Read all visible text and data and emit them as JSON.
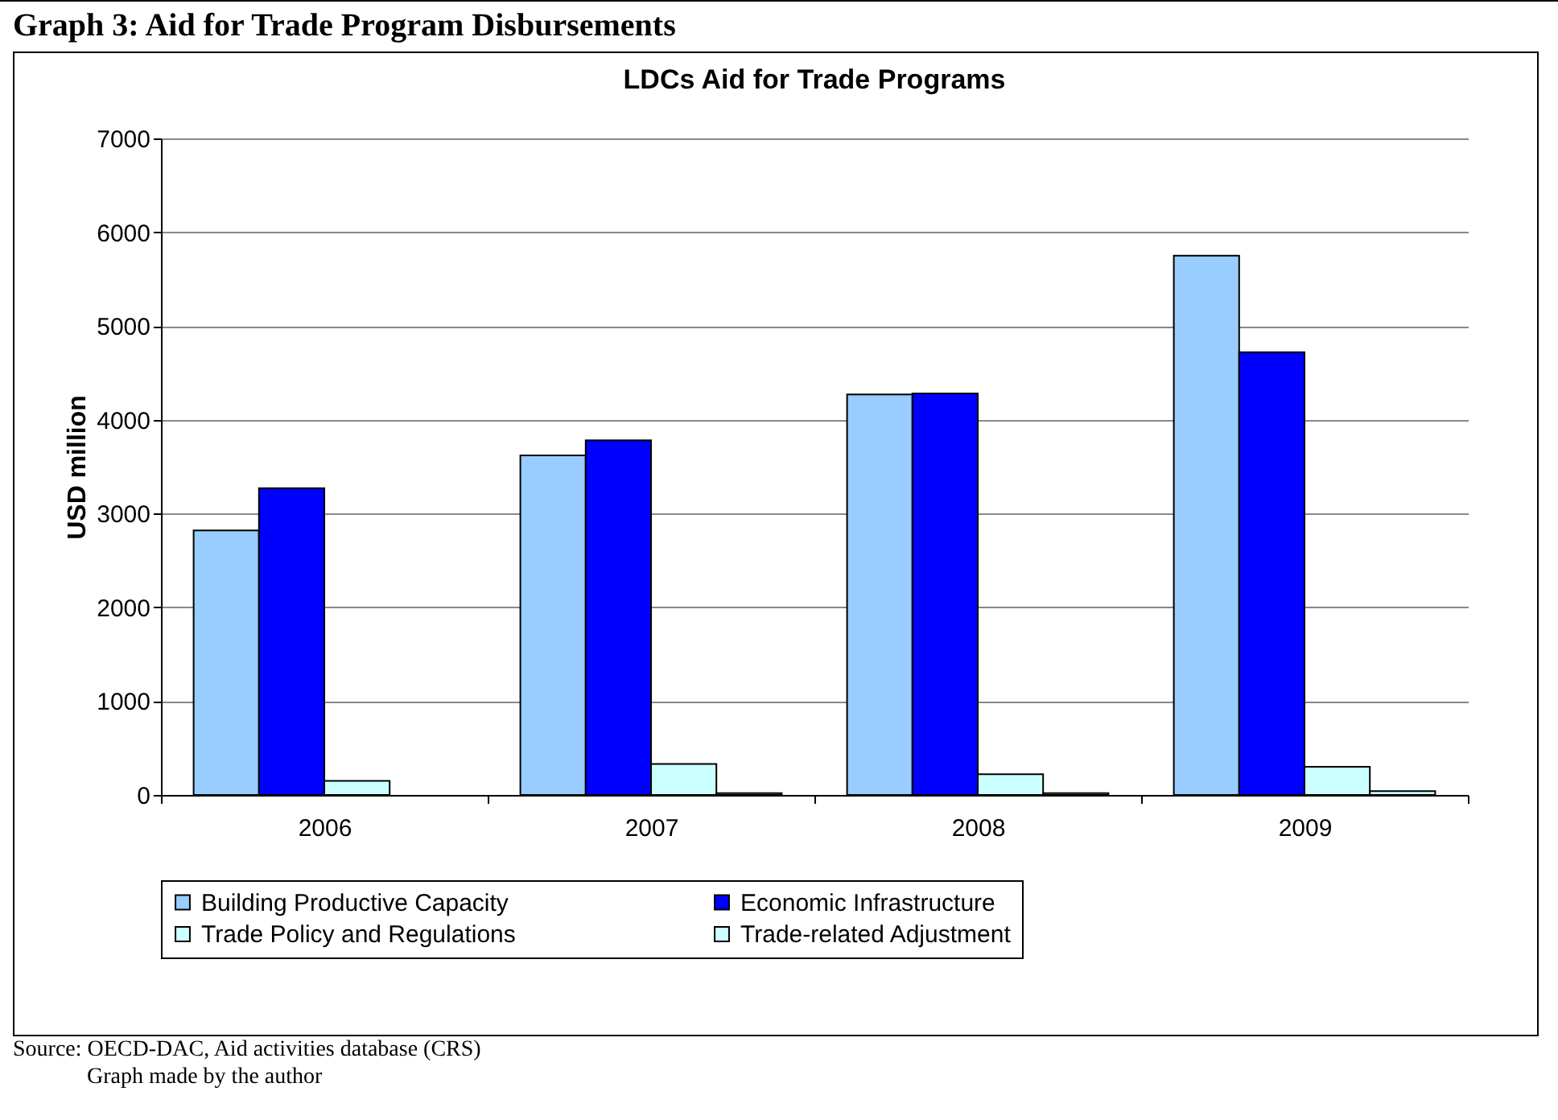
{
  "chart_data": {
    "type": "bar",
    "title": "Graph 3: Aid for Trade Program Disbursements",
    "subtitle": "LDCs Aid for Trade Programs",
    "ylabel": "USD million",
    "categories": [
      "2006",
      "2007",
      "2008",
      "2009"
    ],
    "series": [
      {
        "name": "Building Productive Capacity",
        "color": "#99ccff",
        "values": [
          2820,
          3620,
          4270,
          5750
        ]
      },
      {
        "name": "Economic Infrastructure",
        "color": "#0000ff",
        "values": [
          3270,
          3780,
          4280,
          4720
        ]
      },
      {
        "name": "Trade Policy and Regulations",
        "color": "#ccffff",
        "values": [
          150,
          330,
          220,
          300
        ]
      },
      {
        "name": "Trade-related Adjustment",
        "color": "#ccffff",
        "values": [
          null,
          20,
          20,
          40
        ]
      }
    ],
    "ylim": [
      0,
      7000
    ],
    "yticks": [
      0,
      1000,
      2000,
      3000,
      4000,
      5000,
      6000,
      7000
    ],
    "grid": "y",
    "legend": "bottom",
    "annotations": [
      "Source: OECD-DAC, Aid activities database (CRS)",
      "Graph made by the author"
    ]
  }
}
